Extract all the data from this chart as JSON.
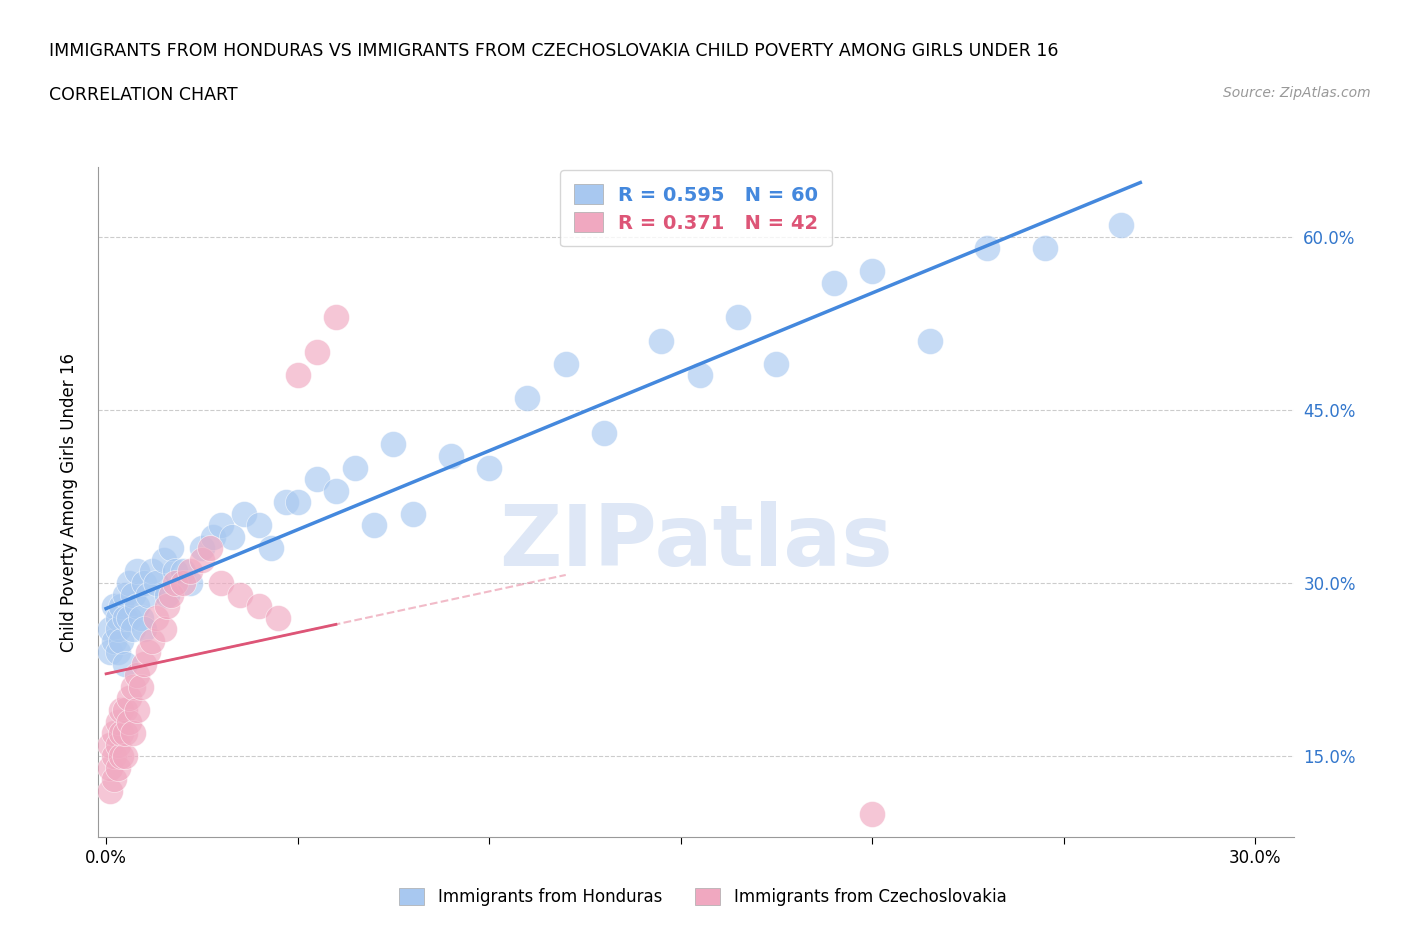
{
  "title_line1": "IMMIGRANTS FROM HONDURAS VS IMMIGRANTS FROM CZECHOSLOVAKIA CHILD POVERTY AMONG GIRLS UNDER 16",
  "title_line2": "CORRELATION CHART",
  "source": "Source: ZipAtlas.com",
  "ylabel": "Child Poverty Among Girls Under 16",
  "xlim": [
    -0.002,
    0.31
  ],
  "ylim": [
    0.08,
    0.66
  ],
  "xticks": [
    0.0,
    0.05,
    0.1,
    0.15,
    0.2,
    0.25,
    0.3
  ],
  "ytick_labels_right": [
    "15.0%",
    "30.0%",
    "45.0%",
    "60.0%"
  ],
  "yticks_right": [
    0.15,
    0.3,
    0.45,
    0.6
  ],
  "r_honduras": 0.595,
  "n_honduras": 60,
  "r_czech": 0.371,
  "n_czech": 42,
  "color_honduras": "#a8c8f0",
  "color_czech": "#f0a8c0",
  "line_color_honduras": "#4488dd",
  "line_color_czech": "#dd5577",
  "legend_label_honduras": "Immigrants from Honduras",
  "legend_label_czech": "Immigrants from Czechoslovakia",
  "watermark": "ZIPatlas",
  "watermark_color": "#c8d8f0",
  "honduras_x": [
    0.001,
    0.001,
    0.002,
    0.002,
    0.003,
    0.003,
    0.003,
    0.004,
    0.004,
    0.005,
    0.005,
    0.005,
    0.006,
    0.006,
    0.007,
    0.007,
    0.008,
    0.008,
    0.009,
    0.01,
    0.01,
    0.011,
    0.012,
    0.013,
    0.015,
    0.016,
    0.017,
    0.018,
    0.02,
    0.022,
    0.025,
    0.028,
    0.03,
    0.033,
    0.036,
    0.04,
    0.043,
    0.047,
    0.05,
    0.055,
    0.06,
    0.065,
    0.07,
    0.075,
    0.08,
    0.09,
    0.1,
    0.11,
    0.12,
    0.13,
    0.145,
    0.155,
    0.165,
    0.175,
    0.19,
    0.2,
    0.215,
    0.23,
    0.245,
    0.265
  ],
  "honduras_y": [
    0.26,
    0.24,
    0.28,
    0.25,
    0.27,
    0.24,
    0.26,
    0.28,
    0.25,
    0.29,
    0.27,
    0.23,
    0.3,
    0.27,
    0.29,
    0.26,
    0.31,
    0.28,
    0.27,
    0.3,
    0.26,
    0.29,
    0.31,
    0.3,
    0.32,
    0.29,
    0.33,
    0.31,
    0.31,
    0.3,
    0.33,
    0.34,
    0.35,
    0.34,
    0.36,
    0.35,
    0.33,
    0.37,
    0.37,
    0.39,
    0.38,
    0.4,
    0.35,
    0.42,
    0.36,
    0.41,
    0.4,
    0.46,
    0.49,
    0.43,
    0.51,
    0.48,
    0.53,
    0.49,
    0.56,
    0.57,
    0.51,
    0.59,
    0.59,
    0.61
  ],
  "czech_x": [
    0.001,
    0.001,
    0.001,
    0.002,
    0.002,
    0.002,
    0.003,
    0.003,
    0.003,
    0.004,
    0.004,
    0.004,
    0.005,
    0.005,
    0.005,
    0.006,
    0.006,
    0.007,
    0.007,
    0.008,
    0.008,
    0.009,
    0.01,
    0.011,
    0.012,
    0.013,
    0.015,
    0.016,
    0.017,
    0.018,
    0.02,
    0.022,
    0.025,
    0.027,
    0.03,
    0.035,
    0.04,
    0.045,
    0.05,
    0.055,
    0.06,
    0.2
  ],
  "czech_y": [
    0.12,
    0.14,
    0.16,
    0.13,
    0.15,
    0.17,
    0.14,
    0.16,
    0.18,
    0.15,
    0.17,
    0.19,
    0.15,
    0.17,
    0.19,
    0.18,
    0.2,
    0.17,
    0.21,
    0.19,
    0.22,
    0.21,
    0.23,
    0.24,
    0.25,
    0.27,
    0.26,
    0.28,
    0.29,
    0.3,
    0.3,
    0.31,
    0.32,
    0.33,
    0.3,
    0.29,
    0.28,
    0.27,
    0.48,
    0.5,
    0.53,
    0.1
  ]
}
